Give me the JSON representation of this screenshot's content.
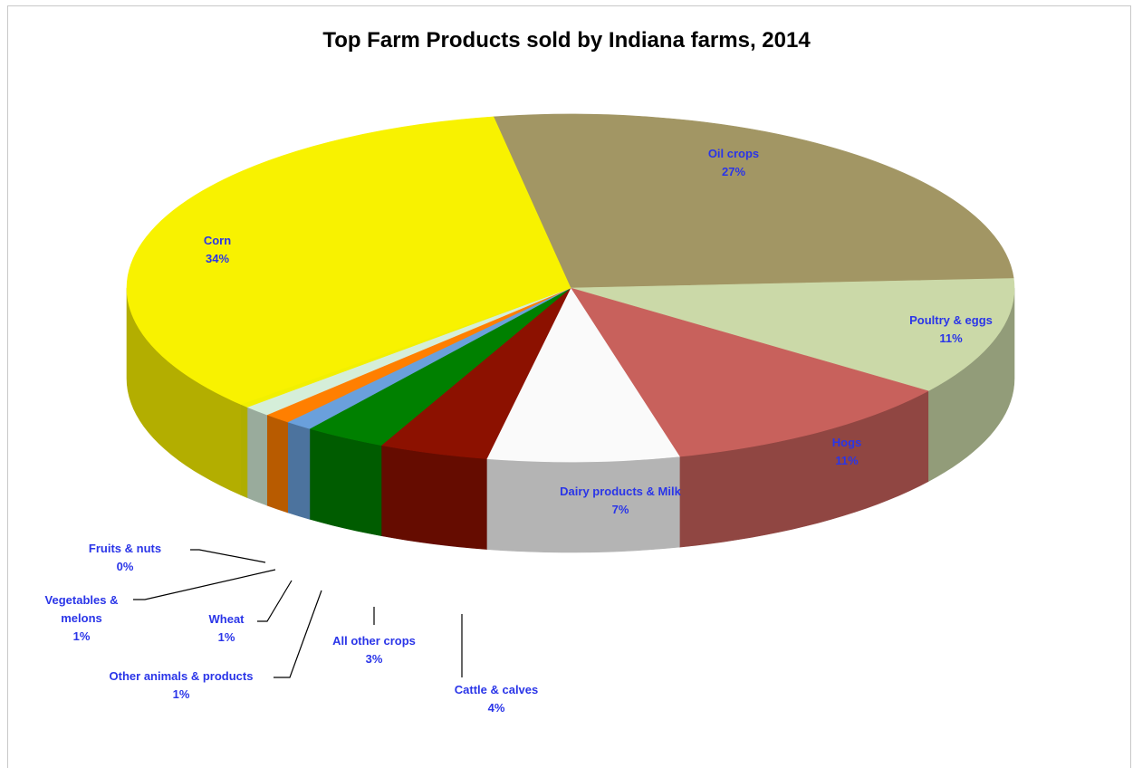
{
  "chart_data": {
    "type": "pie",
    "title": "Top Farm Products sold by Indiana farms, 2014",
    "label_color": "#2a35e8",
    "slices": [
      {
        "name": "Oil crops",
        "value": 27,
        "value_label": "27%",
        "color": "#a29664"
      },
      {
        "name": "Poultry & eggs",
        "value": 11,
        "value_label": "11%",
        "color": "#cbd9a8"
      },
      {
        "name": "Hogs",
        "value": 11,
        "value_label": "11%",
        "color": "#c8615c"
      },
      {
        "name": "Dairy products & Milk",
        "value": 7,
        "value_label": "7%",
        "color": "#fafafa"
      },
      {
        "name": "Cattle & calves",
        "value": 4,
        "value_label": "4%",
        "color": "#8c1100"
      },
      {
        "name": "All other crops",
        "value": 3,
        "value_label": "3%",
        "color": "#008000"
      },
      {
        "name": "Other animals & products",
        "value": 1,
        "value_label": "1%",
        "color": "#6aa0dc"
      },
      {
        "name": "Wheat",
        "value": 1,
        "value_label": "1%",
        "color": "#ff7f00"
      },
      {
        "name": "Vegetables & melons",
        "value": 1,
        "value_label": "1%",
        "color": "#d5eed9"
      },
      {
        "name": "Fruits & nuts",
        "value": 0,
        "value_label": "0%",
        "color": "#f2f000"
      },
      {
        "name": "Corn",
        "value": 34,
        "value_label": "34%",
        "color": "#f8f200"
      }
    ]
  }
}
